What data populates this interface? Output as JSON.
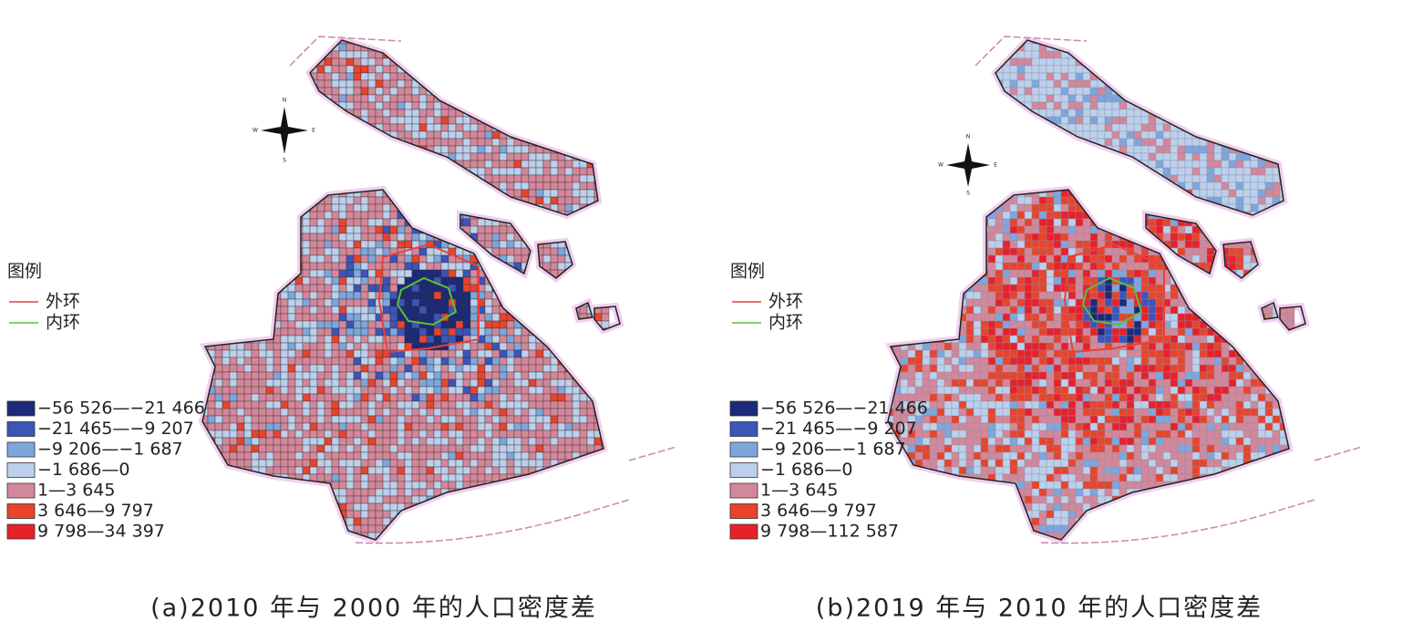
{
  "compass": [
    "N",
    "E",
    "S",
    "W"
  ],
  "panels": [
    {
      "legend": {
        "title": "图例",
        "lines": [
          {
            "label": "外环",
            "color": "#e8413a"
          },
          {
            "label": "内环",
            "color": "#5cc13a"
          }
        ],
        "classes": [
          {
            "label": "−56 526—−21 466",
            "color": "#1d2a78"
          },
          {
            "label": "−21 465—−9 207",
            "color": "#3d54b8"
          },
          {
            "label": "−9 206—−1 687",
            "color": "#7ea6dc"
          },
          {
            "label": "−1 686—0",
            "color": "#bcd0ec"
          },
          {
            "label": "1—3 645",
            "color": "#d4879a"
          },
          {
            "label": "3 646—9 797",
            "color": "#e8442c"
          },
          {
            "label": "9 798—34 397",
            "color": "#e8202a"
          }
        ]
      },
      "caption": "(a)2010 年与 2000 年的人口密度差"
    },
    {
      "legend": {
        "title": "图例",
        "lines": [
          {
            "label": "外环",
            "color": "#e8413a"
          },
          {
            "label": "内环",
            "color": "#5cc13a"
          }
        ],
        "classes": [
          {
            "label": "−56 526—−21 466",
            "color": "#1d2a78"
          },
          {
            "label": "−21 465—−9 207",
            "color": "#3d54b8"
          },
          {
            "label": "−9 206—−1 687",
            "color": "#7ea6dc"
          },
          {
            "label": "−1 686—0",
            "color": "#bcd0ec"
          },
          {
            "label": "1—3 645",
            "color": "#d4879a"
          },
          {
            "label": "3 646—9 797",
            "color": "#e8442c"
          },
          {
            "label": "9 798—112 587",
            "color": "#e8202a"
          }
        ]
      },
      "caption": "(b)2019 年与 2010 年的人口密度差"
    }
  ]
}
